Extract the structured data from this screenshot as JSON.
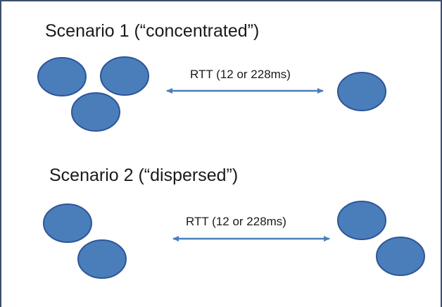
{
  "scenario1": {
    "title": "Scenario 1 (“concentrated”)",
    "rtt_label": "RTT (12 or 228ms)"
  },
  "scenario2": {
    "title": "Scenario 2 (“dispersed”)",
    "rtt_label": "RTT (12 or 228ms)"
  },
  "colors": {
    "node_fill": "#4a7ebb",
    "node_stroke": "#2f5597",
    "arrow": "#4a7ebb",
    "frame": "#3c4f6b"
  }
}
